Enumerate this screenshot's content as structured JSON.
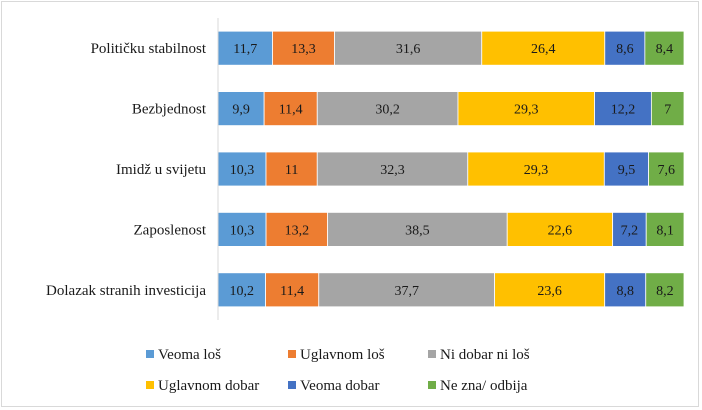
{
  "chart_data": {
    "type": "bar",
    "orientation": "horizontal",
    "stacked": true,
    "percent_stacked": true,
    "title": "",
    "xlabel": "",
    "ylabel": "",
    "xlim": [
      0,
      100
    ],
    "grid": false,
    "legend_position": "bottom",
    "categories": [
      "Političku stabilnost",
      "Bezbjednost",
      "Imidž u svijetu",
      "Zaposlenost",
      "Dolazak stranih investicija"
    ],
    "series": [
      {
        "name": "Veoma loš",
        "color": "#5b9bd5",
        "values": [
          11.7,
          9.9,
          10.3,
          10.3,
          10.2
        ],
        "labels": [
          "11,7",
          "9,9",
          "10,3",
          "10,3",
          "10,2"
        ]
      },
      {
        "name": "Uglavnom loš",
        "color": "#ed7d31",
        "values": [
          13.3,
          11.4,
          11,
          13.2,
          11.4
        ],
        "labels": [
          "13,3",
          "11,4",
          "11",
          "13,2",
          "11,4"
        ]
      },
      {
        "name": "Ni dobar ni loš",
        "color": "#a5a5a5",
        "values": [
          31.6,
          30.2,
          32.3,
          38.5,
          37.7
        ],
        "labels": [
          "31,6",
          "30,2",
          "32,3",
          "38,5",
          "37,7"
        ]
      },
      {
        "name": "Uglavnom dobar",
        "color": "#ffc000",
        "values": [
          26.4,
          29.3,
          29.3,
          22.6,
          23.6
        ],
        "labels": [
          "26,4",
          "29,3",
          "29,3",
          "22,6",
          "23,6"
        ]
      },
      {
        "name": "Veoma dobar",
        "color": "#4472c4",
        "values": [
          8.6,
          12.2,
          9.5,
          7.2,
          8.8
        ],
        "labels": [
          "8,6",
          "12,2",
          "9,5",
          "7,2",
          "8,8"
        ]
      },
      {
        "name": "Ne zna/ odbija",
        "color": "#70ad47",
        "values": [
          8.4,
          7,
          7.6,
          8.1,
          8.2
        ],
        "labels": [
          "8,4",
          "7",
          "7,6",
          "8,1",
          "8,2"
        ]
      }
    ]
  }
}
